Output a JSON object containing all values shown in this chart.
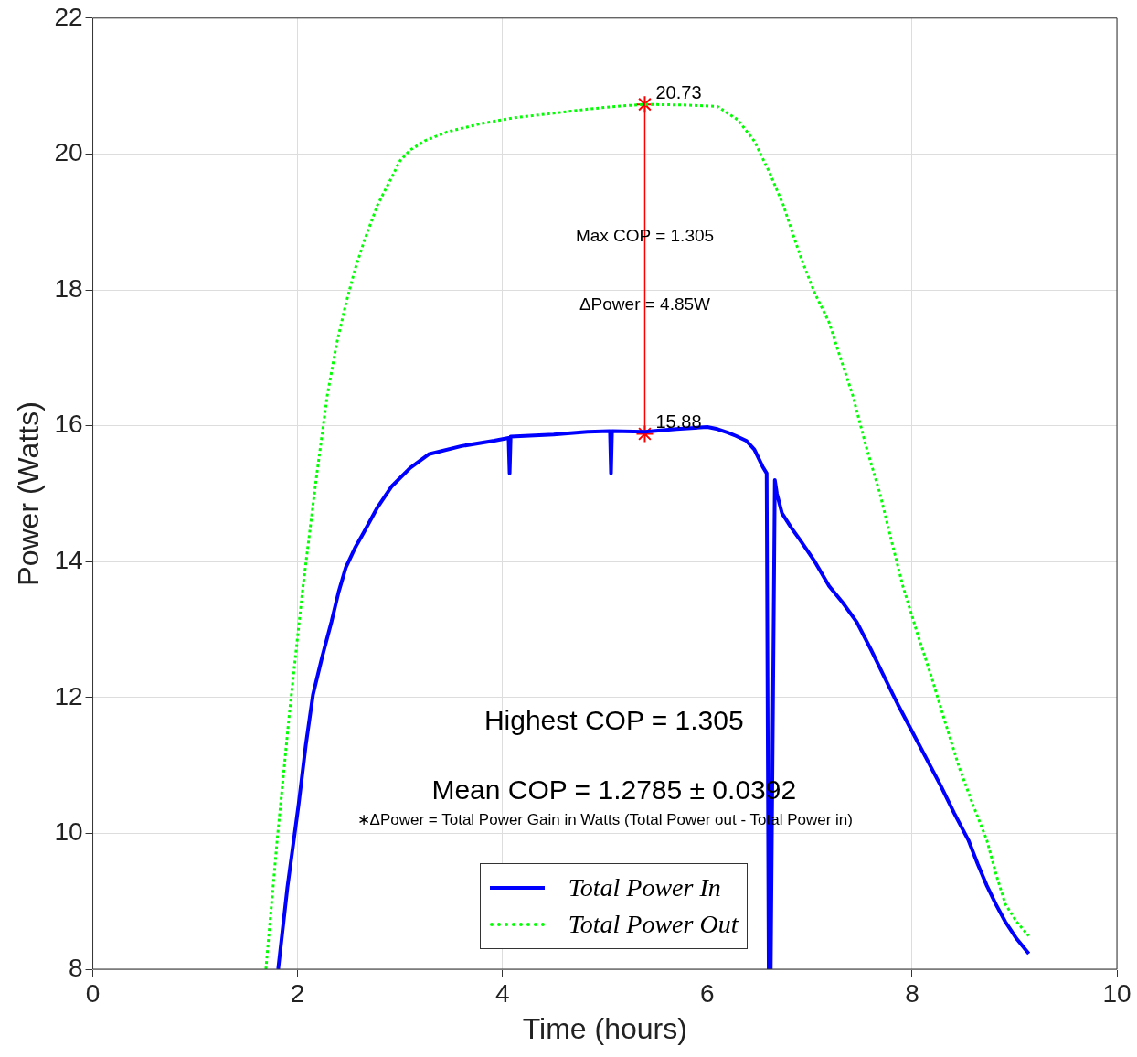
{
  "chart_data": {
    "type": "line",
    "xlabel": "Time (hours)",
    "ylabel": "Power (Watts)",
    "xlim": [
      0,
      10
    ],
    "xticks": [
      0,
      2,
      4,
      6,
      8,
      10
    ],
    "ylim": [
      8,
      22
    ],
    "yticks": [
      8,
      10,
      12,
      14,
      16,
      18,
      20,
      22
    ],
    "grid": true,
    "legend": "bottom",
    "marker": "none",
    "series": [
      {
        "name": "Total Power In",
        "color": "#0000ff",
        "line_style": "solid",
        "x": [
          1.81,
          1.9,
          2.01,
          2.08,
          2.15,
          2.24,
          2.33,
          2.4,
          2.47,
          2.56,
          2.65,
          2.78,
          2.92,
          3.1,
          3.28,
          3.6,
          3.92,
          4.06,
          4.07,
          4.08,
          4.5,
          4.83,
          5.05,
          5.06,
          5.07,
          5.39,
          5.7,
          6.0,
          6.1,
          6.2,
          6.28,
          6.38,
          6.46,
          6.54,
          6.58,
          6.6,
          6.62,
          6.66,
          6.68,
          6.73,
          6.82,
          6.91,
          7.05,
          7.19,
          7.32,
          7.46,
          7.6,
          7.73,
          7.86,
          8.0,
          8.14,
          8.28,
          8.41,
          8.55,
          8.64,
          8.73,
          8.82,
          8.91,
          9.02,
          9.14
        ],
        "values": [
          8,
          9.2,
          10.43,
          11.3,
          12.04,
          12.6,
          13.11,
          13.55,
          13.91,
          14.2,
          14.44,
          14.8,
          15.11,
          15.38,
          15.58,
          15.7,
          15.78,
          15.82,
          15.3,
          15.84,
          15.87,
          15.91,
          15.92,
          15.3,
          15.92,
          15.91,
          15.95,
          15.98,
          15.95,
          15.9,
          15.85,
          15.78,
          15.65,
          15.4,
          15.3,
          8,
          8,
          15.2,
          15.0,
          14.71,
          14.5,
          14.31,
          14.0,
          13.64,
          13.4,
          13.11,
          12.7,
          12.3,
          11.9,
          11.5,
          11.1,
          10.7,
          10.3,
          9.9,
          9.55,
          9.23,
          8.95,
          8.7,
          8.45,
          8.23
        ]
      },
      {
        "name": "Total Power Out",
        "color": "#00ff00",
        "line_style": "dotted",
        "x": [
          1.69,
          1.8,
          1.92,
          2.05,
          2.18,
          2.29,
          2.38,
          2.47,
          2.56,
          2.65,
          2.78,
          2.92,
          3.0,
          3.1,
          3.25,
          3.47,
          3.8,
          4.1,
          4.5,
          4.83,
          5.1,
          5.39,
          5.8,
          6.1,
          6.3,
          6.46,
          6.6,
          6.74,
          6.83,
          6.92,
          7.05,
          7.19,
          7.3,
          7.42,
          7.55,
          7.69,
          7.8,
          7.91,
          8.05,
          8.19,
          8.32,
          8.46,
          8.6,
          8.73,
          8.82,
          8.91,
          9.02,
          9.14
        ],
        "values": [
          8,
          9.9,
          11.77,
          13.6,
          15.2,
          16.45,
          17.2,
          17.79,
          18.3,
          18.72,
          19.25,
          19.66,
          19.9,
          20.06,
          20.2,
          20.33,
          20.45,
          20.53,
          20.6,
          20.66,
          20.7,
          20.73,
          20.72,
          20.7,
          20.5,
          20.19,
          19.75,
          19.26,
          18.85,
          18.45,
          17.95,
          17.52,
          17.0,
          16.45,
          15.7,
          14.98,
          14.3,
          13.64,
          12.95,
          12.3,
          11.65,
          10.97,
          10.4,
          9.9,
          9.4,
          8.96,
          8.7,
          8.49
        ]
      },
      {
        "color": "#ff0000",
        "line_style": "solid",
        "marker": "cross",
        "x": [
          5.39,
          5.39
        ],
        "values": [
          20.73,
          15.88
        ],
        "value_labels": [
          "20.73",
          "15.88"
        ]
      }
    ],
    "annotations": [
      {
        "text": "Max COP = 1.305",
        "x": 5.39,
        "y": 18.78
      },
      {
        "text": "ΔPower = 4.85W",
        "x": 5.39,
        "y": 17.77
      },
      "Highest COP = 1.305",
      "Mean COP = 1.2785 ± 0.0392",
      "∗ΔPower = Total Power Gain in Watts (Total Power out - Total Power in)"
    ]
  }
}
